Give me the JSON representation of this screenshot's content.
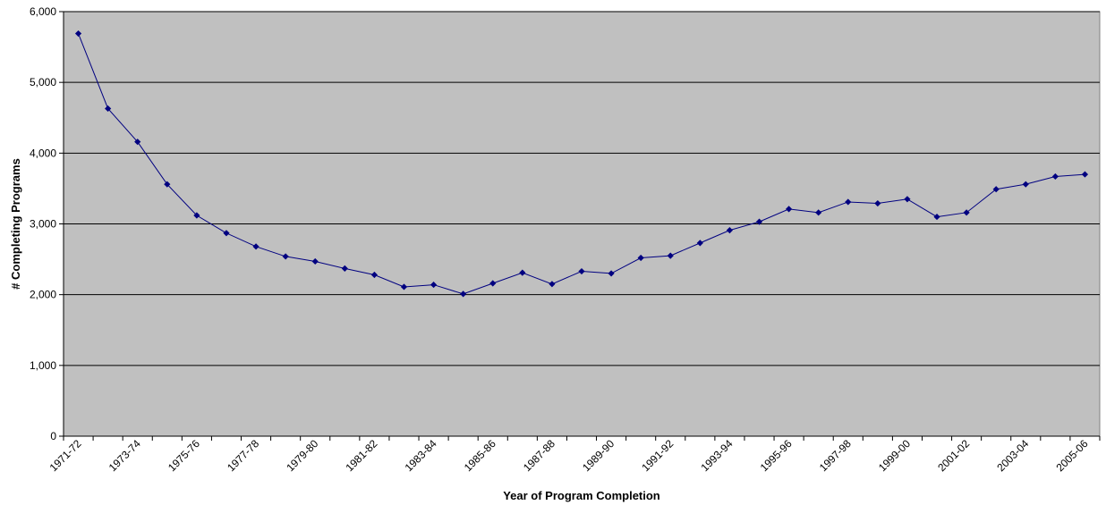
{
  "chart_data": {
    "type": "line",
    "title": "",
    "xlabel": "Year of Program Completion",
    "ylabel": "# Completing Programs",
    "ylim": [
      0,
      6000
    ],
    "yticks": [
      0,
      1000,
      2000,
      3000,
      4000,
      5000,
      6000
    ],
    "ytick_labels": [
      "0",
      "1,000",
      "2,000",
      "3,000",
      "4,000",
      "5,000",
      "6,000"
    ],
    "grid": "horizontal",
    "legend": "none",
    "colors": {
      "plot_background": "#c0c0c0",
      "line": "#000080",
      "gridline": "#000000"
    },
    "categories": [
      "1971-72",
      "1972-73",
      "1973-74",
      "1974-75",
      "1975-76",
      "1976-77",
      "1977-78",
      "1978-79",
      "1979-80",
      "1980-81",
      "1981-82",
      "1982-83",
      "1983-84",
      "1984-85",
      "1985-86",
      "1986-87",
      "1987-88",
      "1988-89",
      "1989-90",
      "1990-91",
      "1991-92",
      "1992-93",
      "1993-94",
      "1994-95",
      "1995-96",
      "1996-97",
      "1997-98",
      "1998-99",
      "1999-00",
      "2000-01",
      "2001-02",
      "2002-03",
      "2003-04",
      "2004-05",
      "2005-06"
    ],
    "x_tick_labels": [
      "1971-72",
      "1973-74",
      "1975-76",
      "1977-78",
      "1979-80",
      "1981-82",
      "1983-84",
      "1985-86",
      "1987-88",
      "1989-90",
      "1991-92",
      "1993-94",
      "1995-96",
      "1997-98",
      "1999-00",
      "2001-02",
      "2003-04",
      "2005-06"
    ],
    "series": [
      {
        "values": [
          5690,
          4630,
          4160,
          3560,
          3120,
          2870,
          2680,
          2540,
          2470,
          2370,
          2280,
          2110,
          2140,
          2010,
          2160,
          2310,
          2150,
          2330,
          2300,
          2520,
          2550,
          2730,
          2910,
          3030,
          3210,
          3160,
          3310,
          3290,
          3350,
          3100,
          3160,
          3490,
          3560,
          3670,
          3700
        ]
      }
    ]
  }
}
